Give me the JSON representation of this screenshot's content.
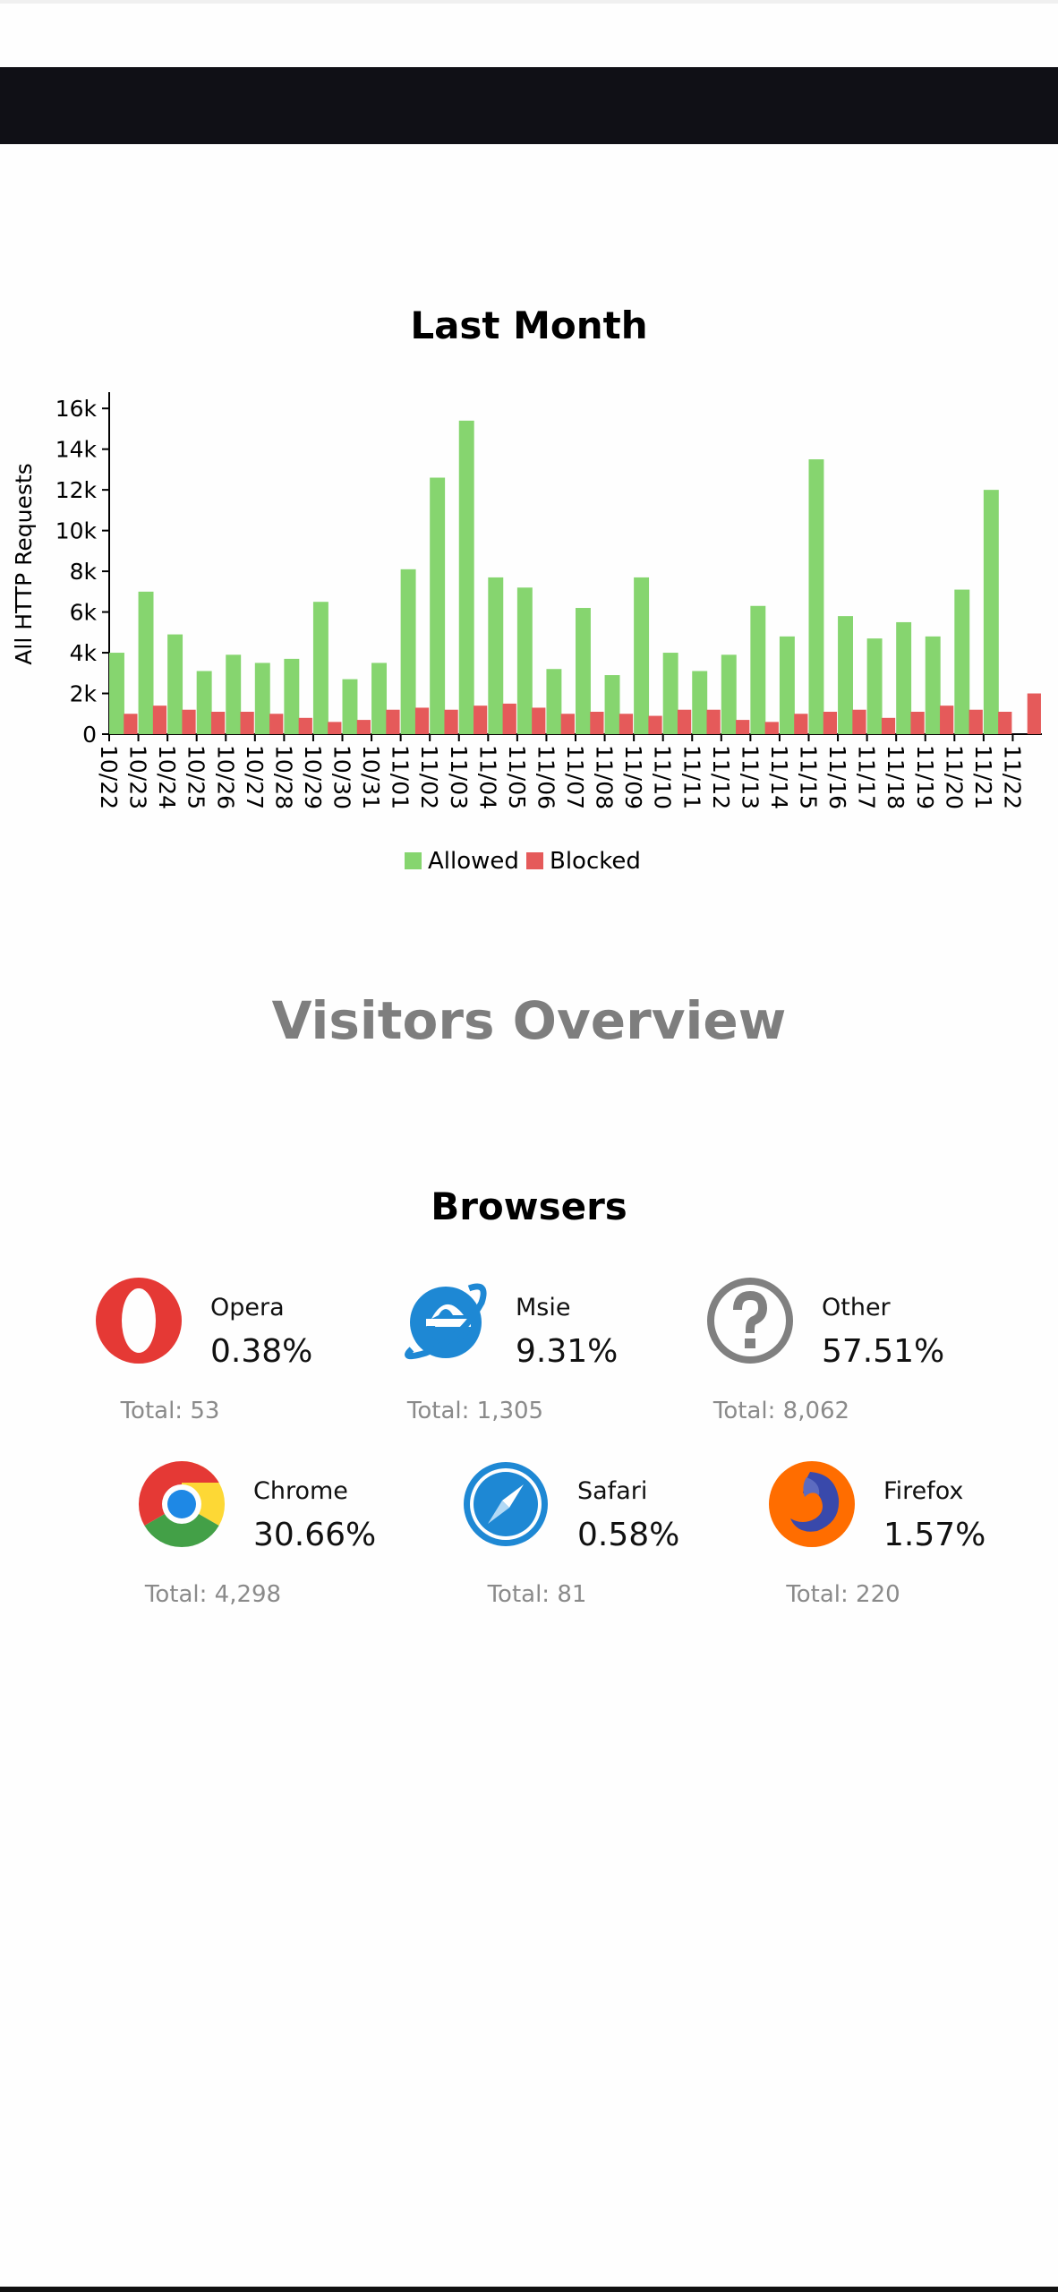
{
  "chart": {
    "title": "Last Month"
  },
  "chart_data": {
    "type": "bar",
    "title": "Last Month",
    "xlabel": "",
    "ylabel": "All HTTP Requests",
    "ylim": [
      0,
      16800
    ],
    "yticks": [
      "0",
      "2k",
      "4k",
      "6k",
      "8k",
      "10k",
      "12k",
      "14k",
      "16k"
    ],
    "legend_position": "bottom-center",
    "grid": false,
    "categories": [
      "10/22",
      "10/23",
      "10/24",
      "10/25",
      "10/26",
      "10/27",
      "10/28",
      "10/29",
      "10/30",
      "10/31",
      "11/01",
      "11/02",
      "11/03",
      "11/04",
      "11/05",
      "11/06",
      "11/07",
      "11/08",
      "11/09",
      "11/10",
      "11/11",
      "11/12",
      "11/13",
      "11/14",
      "11/15",
      "11/16",
      "11/17",
      "11/18",
      "11/19",
      "11/20",
      "11/21",
      "11/22"
    ],
    "series": [
      {
        "name": "Allowed",
        "color": "#86d56f",
        "values": [
          4000,
          7000,
          4900,
          3100,
          3900,
          3500,
          3700,
          6500,
          2700,
          3500,
          8100,
          12600,
          15400,
          7700,
          7200,
          3200,
          6200,
          2900,
          7700,
          4000,
          3100,
          3900,
          6300,
          4800,
          13500,
          5800,
          4700,
          5500,
          4800,
          7100,
          12000,
          0
        ]
      },
      {
        "name": "Blocked",
        "color": "#e55a5a",
        "values": [
          1000,
          1400,
          1200,
          1100,
          1100,
          1000,
          800,
          600,
          700,
          1200,
          1300,
          1200,
          1400,
          1500,
          1300,
          1000,
          1100,
          1000,
          900,
          1200,
          1200,
          700,
          600,
          1000,
          1100,
          1200,
          800,
          1100,
          1400,
          1200,
          1100,
          2000
        ]
      }
    ]
  },
  "overview": {
    "title": "Visitors Overview"
  },
  "browsers": {
    "title": "Browsers",
    "items": [
      {
        "name": "Opera",
        "percent": "0.38%",
        "total": "Total: 53",
        "icon": "opera-icon"
      },
      {
        "name": "Msie",
        "percent": "9.31%",
        "total": "Total: 1,305",
        "icon": "internet-explorer-icon"
      },
      {
        "name": "Other",
        "percent": "57.51%",
        "total": "Total: 8,062",
        "icon": "question-mark-icon"
      },
      {
        "name": "Chrome",
        "percent": "30.66%",
        "total": "Total: 4,298",
        "icon": "chrome-icon"
      },
      {
        "name": "Safari",
        "percent": "0.58%",
        "total": "Total: 81",
        "icon": "safari-icon"
      },
      {
        "name": "Firefox",
        "percent": "1.57%",
        "total": "Total: 220",
        "icon": "firefox-icon"
      }
    ]
  },
  "colors": {
    "navbar": "#101016",
    "allowed": "#86d56f",
    "blocked": "#e55a5a",
    "section_title": "#7e7e7e",
    "total_text": "#8a8a8a"
  }
}
